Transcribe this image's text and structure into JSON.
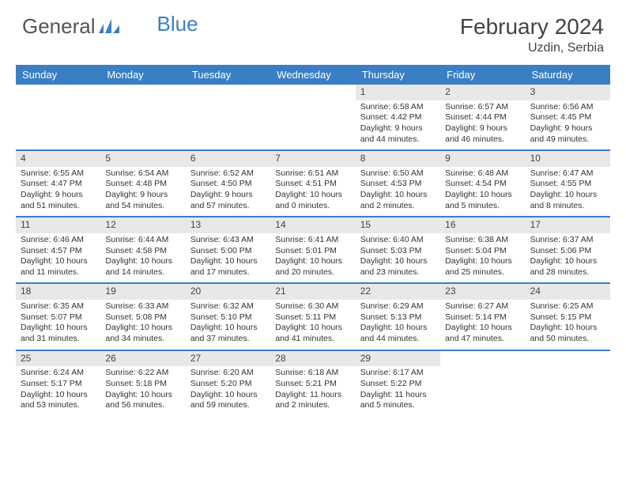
{
  "logo": {
    "text1": "General",
    "text2": "Blue"
  },
  "title": "February 2024",
  "location": "Uzdin, Serbia",
  "colors": {
    "brand_blue": "#3a7fc4",
    "daynum_bg": "#e8e8e8",
    "text": "#333333",
    "header_text": "#444444",
    "background": "#ffffff"
  },
  "day_headers": [
    "Sunday",
    "Monday",
    "Tuesday",
    "Wednesday",
    "Thursday",
    "Friday",
    "Saturday"
  ],
  "weeks": [
    [
      {
        "n": "",
        "sr": "",
        "ss": "",
        "dl": ""
      },
      {
        "n": "",
        "sr": "",
        "ss": "",
        "dl": ""
      },
      {
        "n": "",
        "sr": "",
        "ss": "",
        "dl": ""
      },
      {
        "n": "",
        "sr": "",
        "ss": "",
        "dl": ""
      },
      {
        "n": "1",
        "sr": "Sunrise: 6:58 AM",
        "ss": "Sunset: 4:42 PM",
        "dl": "Daylight: 9 hours and 44 minutes."
      },
      {
        "n": "2",
        "sr": "Sunrise: 6:57 AM",
        "ss": "Sunset: 4:44 PM",
        "dl": "Daylight: 9 hours and 46 minutes."
      },
      {
        "n": "3",
        "sr": "Sunrise: 6:56 AM",
        "ss": "Sunset: 4:45 PM",
        "dl": "Daylight: 9 hours and 49 minutes."
      }
    ],
    [
      {
        "n": "4",
        "sr": "Sunrise: 6:55 AM",
        "ss": "Sunset: 4:47 PM",
        "dl": "Daylight: 9 hours and 51 minutes."
      },
      {
        "n": "5",
        "sr": "Sunrise: 6:54 AM",
        "ss": "Sunset: 4:48 PM",
        "dl": "Daylight: 9 hours and 54 minutes."
      },
      {
        "n": "6",
        "sr": "Sunrise: 6:52 AM",
        "ss": "Sunset: 4:50 PM",
        "dl": "Daylight: 9 hours and 57 minutes."
      },
      {
        "n": "7",
        "sr": "Sunrise: 6:51 AM",
        "ss": "Sunset: 4:51 PM",
        "dl": "Daylight: 10 hours and 0 minutes."
      },
      {
        "n": "8",
        "sr": "Sunrise: 6:50 AM",
        "ss": "Sunset: 4:53 PM",
        "dl": "Daylight: 10 hours and 2 minutes."
      },
      {
        "n": "9",
        "sr": "Sunrise: 6:48 AM",
        "ss": "Sunset: 4:54 PM",
        "dl": "Daylight: 10 hours and 5 minutes."
      },
      {
        "n": "10",
        "sr": "Sunrise: 6:47 AM",
        "ss": "Sunset: 4:55 PM",
        "dl": "Daylight: 10 hours and 8 minutes."
      }
    ],
    [
      {
        "n": "11",
        "sr": "Sunrise: 6:46 AM",
        "ss": "Sunset: 4:57 PM",
        "dl": "Daylight: 10 hours and 11 minutes."
      },
      {
        "n": "12",
        "sr": "Sunrise: 6:44 AM",
        "ss": "Sunset: 4:58 PM",
        "dl": "Daylight: 10 hours and 14 minutes."
      },
      {
        "n": "13",
        "sr": "Sunrise: 6:43 AM",
        "ss": "Sunset: 5:00 PM",
        "dl": "Daylight: 10 hours and 17 minutes."
      },
      {
        "n": "14",
        "sr": "Sunrise: 6:41 AM",
        "ss": "Sunset: 5:01 PM",
        "dl": "Daylight: 10 hours and 20 minutes."
      },
      {
        "n": "15",
        "sr": "Sunrise: 6:40 AM",
        "ss": "Sunset: 5:03 PM",
        "dl": "Daylight: 10 hours and 23 minutes."
      },
      {
        "n": "16",
        "sr": "Sunrise: 6:38 AM",
        "ss": "Sunset: 5:04 PM",
        "dl": "Daylight: 10 hours and 25 minutes."
      },
      {
        "n": "17",
        "sr": "Sunrise: 6:37 AM",
        "ss": "Sunset: 5:06 PM",
        "dl": "Daylight: 10 hours and 28 minutes."
      }
    ],
    [
      {
        "n": "18",
        "sr": "Sunrise: 6:35 AM",
        "ss": "Sunset: 5:07 PM",
        "dl": "Daylight: 10 hours and 31 minutes."
      },
      {
        "n": "19",
        "sr": "Sunrise: 6:33 AM",
        "ss": "Sunset: 5:08 PM",
        "dl": "Daylight: 10 hours and 34 minutes."
      },
      {
        "n": "20",
        "sr": "Sunrise: 6:32 AM",
        "ss": "Sunset: 5:10 PM",
        "dl": "Daylight: 10 hours and 37 minutes."
      },
      {
        "n": "21",
        "sr": "Sunrise: 6:30 AM",
        "ss": "Sunset: 5:11 PM",
        "dl": "Daylight: 10 hours and 41 minutes."
      },
      {
        "n": "22",
        "sr": "Sunrise: 6:29 AM",
        "ss": "Sunset: 5:13 PM",
        "dl": "Daylight: 10 hours and 44 minutes."
      },
      {
        "n": "23",
        "sr": "Sunrise: 6:27 AM",
        "ss": "Sunset: 5:14 PM",
        "dl": "Daylight: 10 hours and 47 minutes."
      },
      {
        "n": "24",
        "sr": "Sunrise: 6:25 AM",
        "ss": "Sunset: 5:15 PM",
        "dl": "Daylight: 10 hours and 50 minutes."
      }
    ],
    [
      {
        "n": "25",
        "sr": "Sunrise: 6:24 AM",
        "ss": "Sunset: 5:17 PM",
        "dl": "Daylight: 10 hours and 53 minutes."
      },
      {
        "n": "26",
        "sr": "Sunrise: 6:22 AM",
        "ss": "Sunset: 5:18 PM",
        "dl": "Daylight: 10 hours and 56 minutes."
      },
      {
        "n": "27",
        "sr": "Sunrise: 6:20 AM",
        "ss": "Sunset: 5:20 PM",
        "dl": "Daylight: 10 hours and 59 minutes."
      },
      {
        "n": "28",
        "sr": "Sunrise: 6:18 AM",
        "ss": "Sunset: 5:21 PM",
        "dl": "Daylight: 11 hours and 2 minutes."
      },
      {
        "n": "29",
        "sr": "Sunrise: 6:17 AM",
        "ss": "Sunset: 5:22 PM",
        "dl": "Daylight: 11 hours and 5 minutes."
      },
      {
        "n": "",
        "sr": "",
        "ss": "",
        "dl": ""
      },
      {
        "n": "",
        "sr": "",
        "ss": "",
        "dl": ""
      }
    ]
  ]
}
